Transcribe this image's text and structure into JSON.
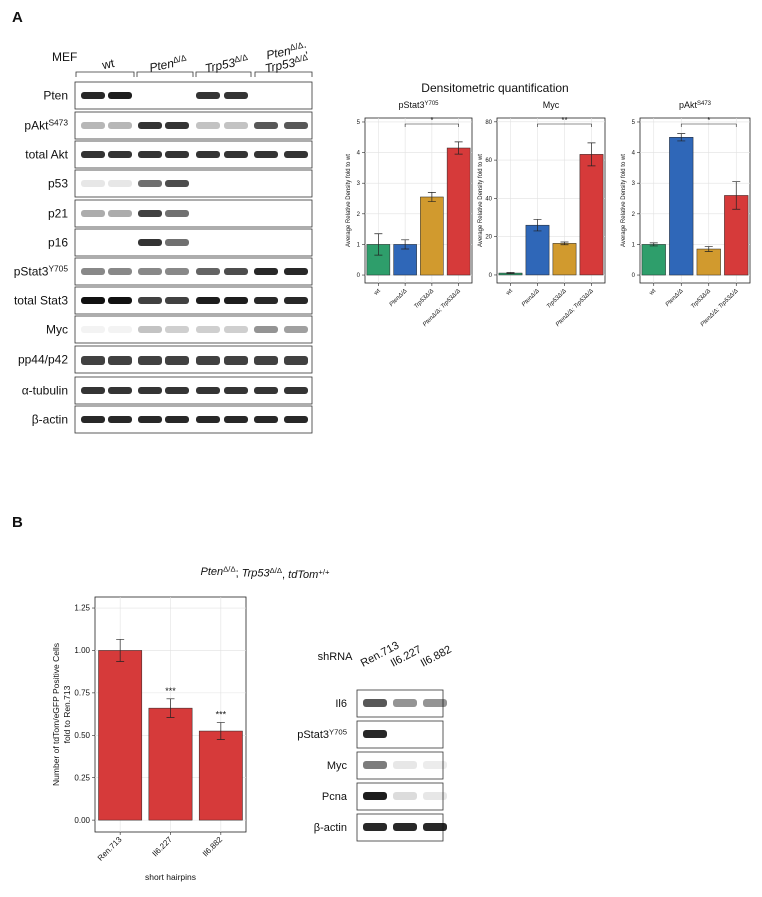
{
  "panel_a": {
    "label": "A",
    "mef": "MEF",
    "groups": [
      {
        "lines": [
          {
            "text": "wt"
          }
        ]
      },
      {
        "lines": [
          {
            "text": "Pten",
            "sup": "Δ/Δ"
          }
        ]
      },
      {
        "lines": [
          {
            "text": "Trp53",
            "sup": "Δ/Δ"
          }
        ]
      },
      {
        "lines": [
          {
            "text": "Pten",
            "sup": "Δ/Δ",
            "after": ";"
          },
          {
            "text": "Trp53",
            "sup": "Δ/Δ"
          }
        ]
      }
    ],
    "rows": [
      {
        "text": "Pten"
      },
      {
        "text": "pAkt",
        "sup": "S473"
      },
      {
        "text": "total Akt"
      },
      {
        "text": "p53"
      },
      {
        "text": "p21"
      },
      {
        "text": "p16"
      },
      {
        "text": "pStat3",
        "sup": "Y705"
      },
      {
        "text": "total Stat3"
      },
      {
        "text": "Myc"
      },
      {
        "text": "pp44/p42"
      },
      {
        "text": "α-tubulin"
      },
      {
        "text": "β-actin"
      }
    ],
    "quant_title": "Densitometric quantification"
  },
  "panel_b": {
    "label": "B",
    "subtitle": [
      {
        "text": "Pten",
        "sup": "Δ/Δ",
        "after": "; "
      },
      {
        "text": "Trp53",
        "sup": "Δ/Δ",
        "after": ", "
      },
      {
        "text": "tdTom",
        "sup": "+/+"
      }
    ],
    "blot": {
      "header": "shRNA",
      "lanes": [
        "Ren.713",
        "Il6.227",
        "Il6.882"
      ],
      "rows": [
        {
          "text": "Il6"
        },
        {
          "text": "pStat3",
          "sup": "Y705"
        },
        {
          "text": "Myc"
        },
        {
          "text": "Pcna"
        },
        {
          "text": "β-actin"
        }
      ]
    }
  },
  "chart_data": [
    {
      "type": "bar",
      "title": "pStat3",
      "title_sup": "Y705",
      "y_label": "Average Relative Density fold to wt",
      "categories": [
        "wt",
        "PtenΔ/Δ",
        "Trp53Δ/Δ",
        "PtenΔ/Δ; Trp53Δ/Δ"
      ],
      "values": [
        1.0,
        1.0,
        2.55,
        4.15
      ],
      "errors": [
        0.35,
        0.15,
        0.15,
        0.2
      ],
      "colors": [
        "#2e9e6b",
        "#2f67b8",
        "#d19a2e",
        "#d63a3a"
      ],
      "ylim": [
        -0.26,
        5.13
      ],
      "yticks": [
        0,
        1,
        2,
        3,
        4,
        5
      ],
      "grid": true,
      "significance": "*"
    },
    {
      "type": "bar",
      "title": "Myc",
      "y_label": "Average Relative Density fold to wt",
      "categories": [
        "wt",
        "PtenΔ/Δ",
        "Trp53Δ/Δ",
        "PtenΔ/Δ; Trp53Δ/Δ"
      ],
      "values": [
        1,
        26,
        16.5,
        63
      ],
      "errors": [
        0.3,
        3,
        0.7,
        6
      ],
      "colors": [
        "#2e9e6b",
        "#2f67b8",
        "#d19a2e",
        "#d63a3a"
      ],
      "ylim": [
        -4.2,
        82
      ],
      "yticks": [
        0,
        20,
        40,
        60,
        80
      ],
      "grid": true,
      "significance": "**"
    },
    {
      "type": "bar",
      "title": "pAkt",
      "title_sup": "S473",
      "y_label": "Average Relative Density fold to wt",
      "categories": [
        "wt",
        "PtenΔ/Δ",
        "Trp53Δ/Δ",
        "PtenΔ/Δ; Trp53Δ/Δ"
      ],
      "values": [
        1.0,
        4.5,
        0.85,
        2.6
      ],
      "errors": [
        0.05,
        0.12,
        0.08,
        0.45
      ],
      "colors": [
        "#2e9e6b",
        "#2f67b8",
        "#d19a2e",
        "#d63a3a"
      ],
      "ylim": [
        -0.26,
        5.13
      ],
      "yticks": [
        0,
        1,
        2,
        3,
        4,
        5
      ],
      "grid": true,
      "significance": "*"
    },
    {
      "type": "bar",
      "y_label": [
        "Number of tdTom/eGFP Positive Cells",
        "fold to Ren.713"
      ],
      "x_label": "short hairpins",
      "categories": [
        "Ren.713",
        "Il6.227",
        "Il6.882"
      ],
      "values": [
        1.0,
        0.66,
        0.525
      ],
      "errors": [
        0.065,
        0.055,
        0.05
      ],
      "annotations": [
        null,
        "***",
        "***"
      ],
      "colors": [
        "#d63a3a",
        "#d63a3a",
        "#d63a3a"
      ],
      "ylim": [
        -0.07,
        1.315
      ],
      "yticks": [
        {
          "value": 0,
          "label": "0.00"
        },
        {
          "value": 0.25,
          "label": "0.25"
        },
        {
          "value": 0.5,
          "label": "0.50"
        },
        {
          "value": 0.75,
          "label": "0.75"
        },
        {
          "value": 1,
          "label": "1.00"
        },
        {
          "value": 1.25,
          "label": "1.25"
        }
      ],
      "grid": true
    }
  ]
}
